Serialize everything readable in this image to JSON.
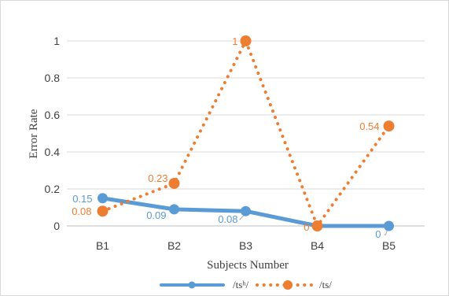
{
  "chart_data": {
    "type": "line",
    "xlabel": "Subjects Number",
    "ylabel": "Error Rate",
    "categories": [
      "B1",
      "B2",
      "B3",
      "B4",
      "B5"
    ],
    "ylim": [
      0,
      1.1
    ],
    "yticks": [
      "0",
      "0.2",
      "0.4",
      "0.6",
      "0.8",
      "1"
    ],
    "grid": true,
    "legend_position": "bottom",
    "series": [
      {
        "name": "/tsʰ/",
        "values": [
          0.15,
          0.09,
          0.08,
          0,
          0
        ],
        "labels": [
          "0.15",
          "0.09",
          "0.08",
          "",
          "0"
        ],
        "color": "#5b9bd5",
        "style": "solid"
      },
      {
        "name": "/ts/",
        "values": [
          0.08,
          0.23,
          1,
          0,
          0.54
        ],
        "labels": [
          "0.08",
          "0.23",
          "1",
          "0",
          "0.54"
        ],
        "color": "#ed7d31",
        "style": "dotted"
      }
    ]
  }
}
